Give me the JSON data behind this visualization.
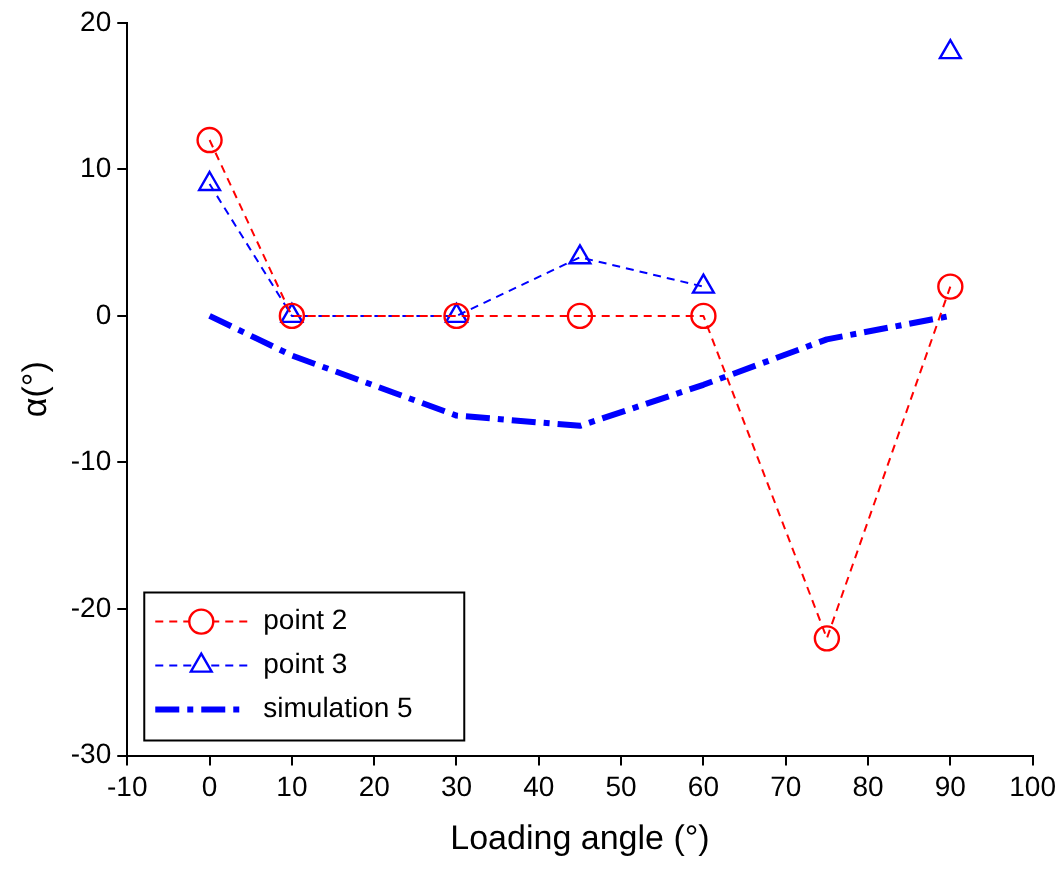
{
  "chart_data": {
    "type": "line",
    "xlabel": "Loading angle (°)",
    "ylabel": "α(°)",
    "x": [
      0,
      10,
      30,
      45,
      60,
      75,
      90
    ],
    "series": [
      {
        "name": "point 2",
        "color": "#ff0000",
        "marker": "circle",
        "line_style": "dashed",
        "values": [
          12,
          0,
          0,
          0,
          0,
          -22,
          2
        ]
      },
      {
        "name": "point 3",
        "color": "#0000ff",
        "marker": "triangle",
        "line_style": "dashed",
        "values": [
          9,
          0,
          0,
          4,
          2,
          null,
          18
        ]
      },
      {
        "name": "simulation 5",
        "color": "#0000ff",
        "marker": "none",
        "line_style": "dashed",
        "values": [
          0,
          -2.7,
          -6.8,
          -7.5,
          -4.7,
          -1.6,
          0
        ]
      }
    ],
    "xlim": [
      -10,
      100
    ],
    "xticks": [
      -10,
      0,
      10,
      20,
      30,
      40,
      50,
      60,
      70,
      80,
      90,
      100
    ],
    "ylim": [
      -30,
      20
    ],
    "yticks": [
      -30,
      -20,
      -10,
      0,
      10,
      20
    ],
    "grid": false,
    "legend": "bottom left"
  }
}
